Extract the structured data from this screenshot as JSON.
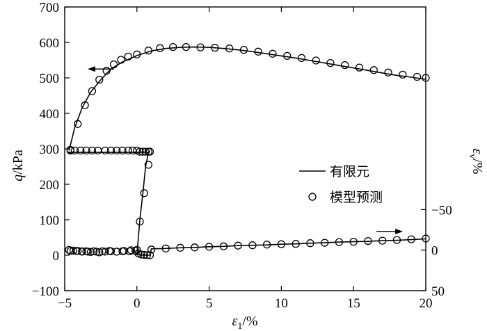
{
  "chart_data": {
    "type": "line",
    "xlabel_main": "ε",
    "xlabel_sub": "1",
    "xlabel_unit": "/%",
    "ylabel_main": "q",
    "ylabel_unit": "/kPa",
    "y2label_main": "ε",
    "y2label_sub": "v",
    "y2label_unit": "/%",
    "xlim": [
      -5,
      20
    ],
    "ylim": [
      -100,
      700
    ],
    "y2lim": [
      50,
      -300
    ],
    "x_ticks": [
      -5,
      0,
      5,
      10,
      15,
      20
    ],
    "x_tick_labels": [
      "−5",
      "0",
      "5",
      "10",
      "15",
      "20"
    ],
    "y_ticks": [
      -100,
      0,
      100,
      200,
      300,
      400,
      500,
      600,
      700
    ],
    "y_tick_labels": [
      "−100",
      "0",
      "100",
      "200",
      "300",
      "400",
      "500",
      "600",
      "700"
    ],
    "y2_ticks": [
      -50,
      0,
      50
    ],
    "y2_tick_labels": [
      "−50",
      "0",
      "50"
    ],
    "legend": [
      {
        "label": "有限元",
        "marker": "line"
      },
      {
        "label": "模型预测",
        "marker": "circle"
      }
    ],
    "series": [
      {
        "name": "有限元",
        "axis": "left",
        "x": [
          -4.7,
          -4.3,
          -3.8,
          -3.2,
          -2.5,
          -1.8,
          -1.0,
          0.0,
          1.0,
          2.0,
          3.0,
          4.0,
          5.0,
          6.0,
          7.0,
          8.0,
          9.0,
          10.0,
          11.0,
          12.0,
          13.0,
          14.0,
          15.0,
          16.0,
          17.0,
          18.0,
          19.0,
          20.0
        ],
        "y": [
          295,
          360,
          415,
          460,
          495,
          525,
          545,
          563,
          576,
          583,
          586,
          587,
          586,
          583,
          579,
          574,
          568,
          562,
          556,
          549,
          542,
          535,
          528,
          521,
          514,
          507,
          502,
          496
        ]
      },
      {
        "name": "模型预测",
        "axis": "left",
        "x": [
          -4.6,
          -4.1,
          -3.6,
          -3.1,
          -2.6,
          -2.1,
          -1.6,
          -1.1,
          -0.6,
          0.0,
          0.8,
          1.6,
          2.5,
          3.4,
          4.4,
          5.4,
          6.4,
          7.4,
          8.4,
          9.4,
          10.4,
          11.4,
          12.4,
          13.4,
          14.4,
          15.4,
          16.4,
          17.4,
          18.4,
          19.4,
          20.0
        ],
        "y": [
          297,
          370,
          423,
          463,
          495,
          520,
          538,
          551,
          560,
          566,
          577,
          584,
          587,
          587,
          586,
          585,
          583,
          579,
          574,
          568,
          562,
          556,
          549,
          542,
          536,
          529,
          522,
          515,
          509,
          503,
          500
        ]
      },
      {
        "name": "",
        "axis": "left",
        "x": [
          -4.8,
          -4.5,
          -0.5,
          0.0,
          0.3,
          0.5,
          0.65,
          0.75,
          0.8,
          0.85,
          0.9,
          0.9
        ],
        "y": [
          290,
          290,
          290,
          290,
          290,
          290,
          290,
          290,
          290,
          290,
          290,
          290
        ]
      },
      {
        "name": "",
        "axis": "left",
        "x": [
          0.0,
          0.2,
          0.4,
          0.5,
          0.6,
          0.7,
          0.8,
          0.85,
          0.9
        ],
        "y": [
          0,
          100,
          170,
          210,
          250,
          270,
          290,
          293,
          295
        ]
      },
      {
        "name": "",
        "axis": "left",
        "x": [
          -4.7,
          -4.4,
          -4.1,
          -3.8,
          -3.5,
          -3.2,
          -2.8,
          -2.4,
          -1.9,
          -1.4,
          -0.9,
          -0.4,
          0.0
        ],
        "y": [
          15,
          13,
          12,
          10,
          11,
          9,
          10,
          11,
          12,
          10,
          12,
          14,
          15
        ]
      },
      {
        "name": "",
        "axis": "left",
        "x": [
          0.0,
          0.2,
          0.4,
          0.6,
          0.8,
          0.9,
          1.0,
          2.0,
          3.0,
          4.0,
          5.0,
          6.0,
          7.0,
          8.0,
          9.0,
          10.0,
          11.0,
          12.0,
          13.0,
          14.0,
          15.0,
          16.0,
          17.0,
          18.0,
          19.0,
          20.0
        ],
        "y": [
          15,
          0,
          0,
          0,
          0,
          0,
          18,
          19,
          21,
          22,
          24,
          25,
          27,
          28,
          29,
          31,
          32,
          34,
          35,
          37,
          38,
          39,
          41,
          42,
          44,
          46
        ]
      },
      {
        "name": "",
        "axis": "left",
        "x": [
          -4.6,
          -4.2,
          -3.8,
          -3.4,
          -3.0,
          -2.6,
          -2.2,
          -1.8,
          -1.4,
          -1.0,
          -0.5,
          -0.1,
          0.1,
          0.3,
          0.5,
          0.7,
          0.9,
          1.0,
          2.0,
          3.0,
          4.0,
          5.0,
          6.0,
          7.0,
          8.0,
          9.0,
          10.0,
          11.0,
          12.0,
          13.0,
          14.0,
          15.0,
          16.0,
          17.0,
          18.0,
          19.0,
          20.0
        ],
        "y": [
          12,
          12,
          11,
          10,
          11,
          8,
          10,
          11,
          10,
          11,
          11,
          12,
          5,
          2,
          1,
          0,
          0,
          16,
          19,
          21,
          22,
          24,
          25,
          27,
          28,
          30,
          31,
          32,
          34,
          35,
          37,
          38,
          40,
          41,
          43,
          45,
          47
        ]
      },
      {
        "name": "",
        "axis": "left",
        "x": [
          -4.6,
          -4.3,
          -3.9,
          -3.5,
          -3.1,
          -2.7,
          -2.2,
          -1.8,
          -1.4,
          -1.0,
          -0.6,
          -0.3,
          0.0,
          0.2,
          0.4,
          0.6,
          0.8,
          0.9
        ],
        "y": [
          295,
          295,
          295,
          295,
          295,
          295,
          295,
          295,
          295,
          295,
          295,
          295,
          295,
          292,
          292,
          292,
          292,
          292
        ]
      },
      {
        "name": "",
        "axis": "left",
        "x": [
          0.2,
          0.5,
          0.8
        ],
        "y": [
          95,
          175,
          255
        ]
      }
    ],
    "annotations": [
      {
        "type": "arrow-left",
        "anchor_x": -2.5,
        "anchor_y": 525
      },
      {
        "type": "arrow-right",
        "anchor_x": 17.5,
        "anchor_y": 67
      }
    ]
  }
}
